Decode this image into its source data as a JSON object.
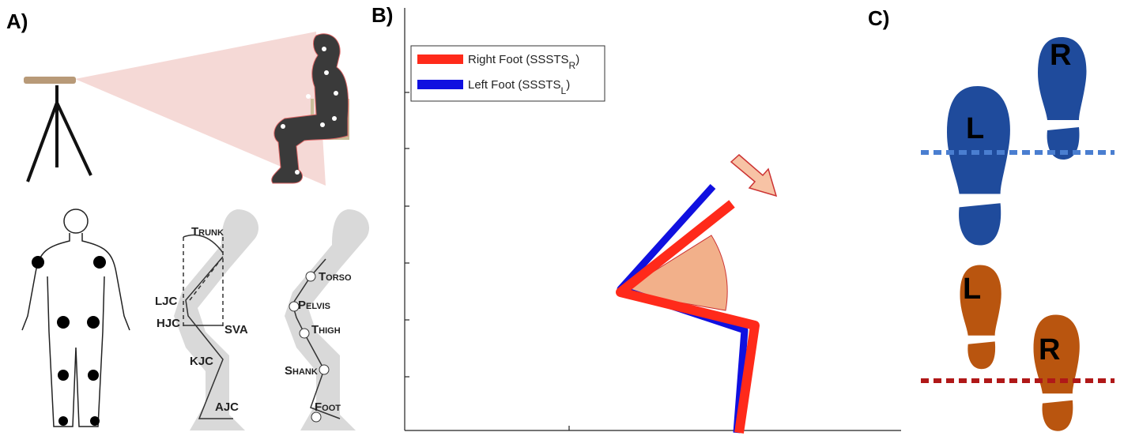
{
  "panels": {
    "a": {
      "label": "A)",
      "annotations": {
        "trunk": "Trunk",
        "ljc": "LJC",
        "hjc": "HJC",
        "sva": "SVA",
        "kjc": "KJC",
        "ajc": "AJC",
        "torso": "Torso",
        "pelvis": "Pelvis",
        "thigh": "Thigh",
        "shank": "Shank",
        "foot": "Foot"
      }
    },
    "b": {
      "label": "B)",
      "legend": [
        {
          "text": "Right Foot (SSSTS",
          "subscript": "R",
          "suffix": ")",
          "color": "#ff2a1a"
        },
        {
          "text": "Left Foot (SSSTS",
          "subscript": "L",
          "suffix": ")",
          "color": "#1010e0"
        }
      ]
    },
    "c": {
      "label": "C)",
      "top": {
        "left": "L",
        "right": "R"
      },
      "bottom": {
        "left": "L",
        "right": "R"
      }
    }
  }
}
